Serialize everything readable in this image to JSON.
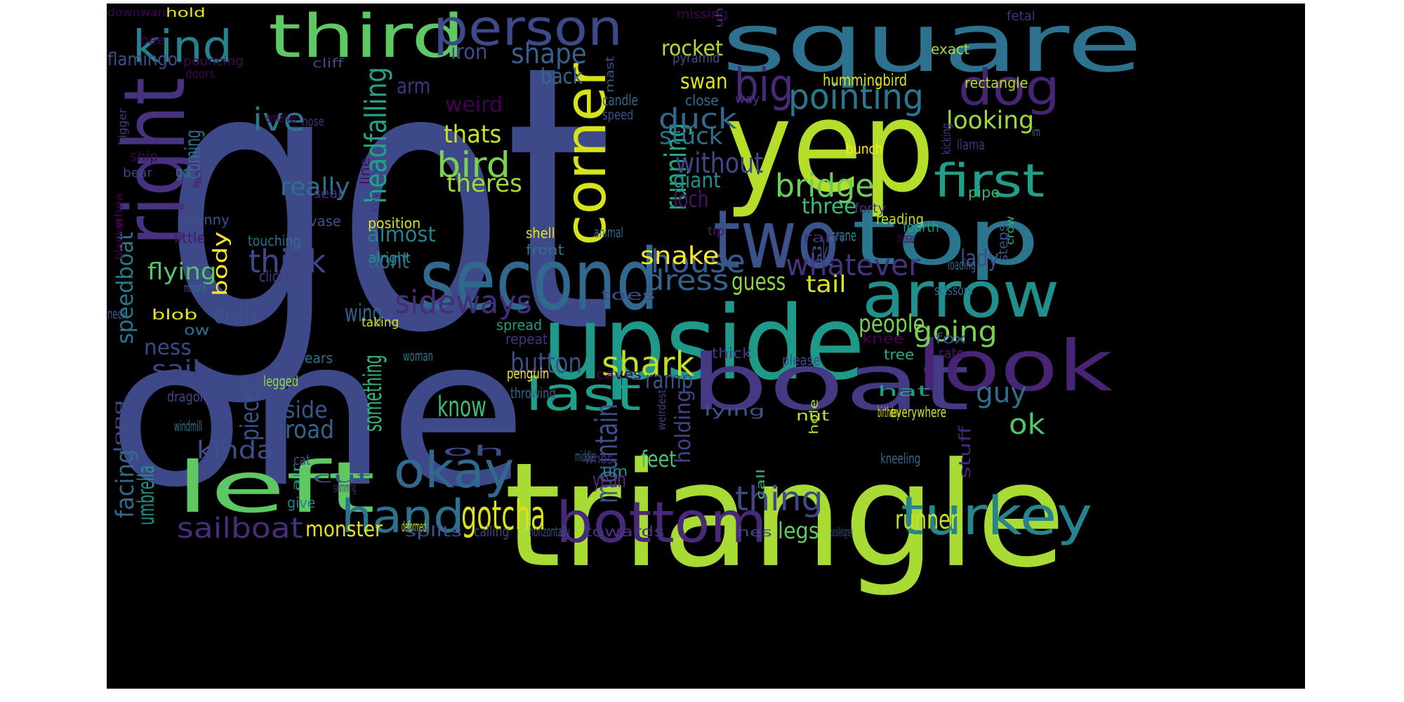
{
  "title": "word cloud",
  "palette": {
    "background": "#000000",
    "page": "#ffffff"
  },
  "words": [
    {
      "text": "got",
      "color": "#3e4989"
    },
    {
      "text": "one",
      "color": "#3e4989"
    },
    {
      "text": "triangle",
      "color": "#a8db34"
    },
    {
      "text": "upside",
      "color": "#1f9a8a"
    },
    {
      "text": "square",
      "color": "#2c728e"
    },
    {
      "text": "yep",
      "color": "#b5de2b"
    },
    {
      "text": "boat",
      "color": "#443983"
    },
    {
      "text": "second",
      "color": "#31688e"
    },
    {
      "text": "two",
      "color": "#3b528b"
    },
    {
      "text": "top",
      "color": "#2a768e"
    },
    {
      "text": "arrow",
      "color": "#21908d"
    },
    {
      "text": "look",
      "color": "#482475"
    },
    {
      "text": "third",
      "color": "#5ec962"
    },
    {
      "text": "person",
      "color": "#3e4989"
    },
    {
      "text": "left",
      "color": "#5ec962"
    },
    {
      "text": "right",
      "color": "#46327e"
    },
    {
      "text": "corner",
      "color": "#d8e219"
    },
    {
      "text": "bottom",
      "color": "#482878"
    },
    {
      "text": "turkey",
      "color": "#25848e"
    },
    {
      "text": "hand",
      "color": "#2c728e"
    },
    {
      "text": "okay",
      "color": "#31688e"
    },
    {
      "text": "last",
      "color": "#1f9e89"
    },
    {
      "text": "dog",
      "color": "#482475"
    },
    {
      "text": "kind",
      "color": "#26828e"
    },
    {
      "text": "first",
      "color": "#1f9e89"
    },
    {
      "text": "big",
      "color": "#482878"
    },
    {
      "text": "pointing",
      "color": "#29798e"
    },
    {
      "text": "gotcha",
      "color": "#dde318"
    },
    {
      "text": "sailboat",
      "color": "#472d7b"
    },
    {
      "text": "sideways",
      "color": "#472c7a"
    },
    {
      "text": "shark",
      "color": "#c2df23"
    },
    {
      "text": "thing",
      "color": "#3f4788"
    },
    {
      "text": "whatever",
      "color": "#46337f"
    },
    {
      "text": "bridge",
      "color": "#6ccd5a"
    },
    {
      "text": "house",
      "color": "#375a8c"
    },
    {
      "text": "going",
      "color": "#75d054"
    },
    {
      "text": "think",
      "color": "#404688"
    },
    {
      "text": "mountain",
      "color": "#3b528b"
    },
    {
      "text": "running",
      "color": "#22a884"
    },
    {
      "text": "headfalling",
      "color": "#20a386"
    },
    {
      "text": "ive",
      "color": "#2b758e"
    },
    {
      "text": "bird",
      "color": "#7ad151"
    },
    {
      "text": "duck",
      "color": "#31688e"
    },
    {
      "text": "shape",
      "color": "#35608d"
    },
    {
      "text": "looking",
      "color": "#9dd93b"
    },
    {
      "text": "without",
      "color": "#3f4889"
    },
    {
      "text": "dress",
      "color": "#33628d"
    },
    {
      "text": "guy",
      "color": "#2d708e"
    },
    {
      "text": "ok",
      "color": "#52c569"
    },
    {
      "text": "runner",
      "color": "#c8e020"
    },
    {
      "text": "pieces",
      "color": "#3b528b"
    },
    {
      "text": "monster",
      "color": "#e5e419"
    },
    {
      "text": "legs",
      "color": "#5ec962"
    },
    {
      "text": "kinda",
      "color": "#3d4e8a"
    },
    {
      "text": "road",
      "color": "#32658e"
    },
    {
      "text": "know",
      "color": "#3fbc73"
    },
    {
      "text": "something",
      "color": "#34b679"
    },
    {
      "text": "button",
      "color": "#3d4d8a"
    },
    {
      "text": "snake",
      "color": "#fde725"
    },
    {
      "text": "guess",
      "color": "#8bd646"
    },
    {
      "text": "tail",
      "color": "#dde318"
    },
    {
      "text": "people",
      "color": "#7ad151"
    },
    {
      "text": "sail",
      "color": "#404588"
    },
    {
      "text": "side",
      "color": "#39568c"
    },
    {
      "text": "facing",
      "color": "#31688e"
    },
    {
      "text": "umbrella",
      "color": "#21918c"
    },
    {
      "text": "feet",
      "color": "#4ac16d"
    },
    {
      "text": "holding",
      "color": "#414487"
    },
    {
      "text": "yeah",
      "color": "#5a2d81"
    },
    {
      "text": "ramp",
      "color": "#3b528b"
    },
    {
      "text": "thats",
      "color": "#cae11f"
    },
    {
      "text": "theres",
      "color": "#a0da39"
    },
    {
      "text": "really",
      "color": "#2d718e"
    },
    {
      "text": "almost",
      "color": "#26828e"
    },
    {
      "text": "dont",
      "color": "#33628d"
    },
    {
      "text": "wing",
      "color": "#32658e"
    },
    {
      "text": "flying",
      "color": "#54c568"
    },
    {
      "text": "crab",
      "color": "#3b528b"
    },
    {
      "text": "coming",
      "color": "#2e6e8e"
    },
    {
      "text": "body",
      "color": "#fde725"
    },
    {
      "text": "speedboat",
      "color": "#2a788e"
    },
    {
      "text": "ness",
      "color": "#3e4989"
    },
    {
      "text": "swan",
      "color": "#e2e418"
    },
    {
      "text": "rocket",
      "color": "#b8de29"
    },
    {
      "text": "iron",
      "color": "#3d4e8a"
    },
    {
      "text": "back",
      "color": "#31688e"
    },
    {
      "text": "arm",
      "color": "#46327e"
    },
    {
      "text": "weird",
      "color": "#440154"
    },
    {
      "text": "stuck",
      "color": "#2c728e"
    },
    {
      "text": "giant",
      "color": "#21918c"
    },
    {
      "text": "loch",
      "color": "#471164"
    },
    {
      "text": "cake",
      "color": "#3e4a89"
    },
    {
      "text": "three",
      "color": "#3fbc73"
    },
    {
      "text": "lady",
      "color": "#3d4e8a"
    },
    {
      "text": "flamingo",
      "color": "#3d4e8a"
    },
    {
      "text": "hummingbird",
      "color": "#dae319"
    },
    {
      "text": "rectangle",
      "color": "#b8de29"
    },
    {
      "text": "exact",
      "color": "#9fda3a"
    },
    {
      "text": "missing",
      "color": "#440154"
    },
    {
      "text": "downward",
      "color": "#440154"
    },
    {
      "text": "hold",
      "color": "#e7e419"
    },
    {
      "text": "bee",
      "color": "#440154"
    },
    {
      "text": "pouncing",
      "color": "#450559"
    },
    {
      "text": "doors",
      "color": "#440154"
    },
    {
      "text": "cliff",
      "color": "#3e4989"
    },
    {
      "text": "pyramid",
      "color": "#3b528b"
    },
    {
      "text": "mast",
      "color": "#39568c"
    },
    {
      "text": "uh",
      "color": "#46337f"
    },
    {
      "text": "fetal",
      "color": "#46327e"
    },
    {
      "text": "ship",
      "color": "#440154"
    },
    {
      "text": "candle",
      "color": "#31688e"
    },
    {
      "text": "speed",
      "color": "#39568c"
    },
    {
      "text": "close",
      "color": "#2d708e"
    },
    {
      "text": "way",
      "color": "#46327e"
    },
    {
      "text": "bigger",
      "color": "#443983"
    },
    {
      "text": "bear",
      "color": "#414487"
    },
    {
      "text": "go",
      "color": "#2a788e"
    },
    {
      "text": "smaller",
      "color": "#440154"
    },
    {
      "text": "nose",
      "color": "#472d7b"
    },
    {
      "text": "kicking",
      "color": "#443983"
    },
    {
      "text": "llama",
      "color": "#46307e"
    },
    {
      "text": "im",
      "color": "#31688e"
    },
    {
      "text": "bunch",
      "color": "#fde725"
    },
    {
      "text": "line",
      "color": "#470d60"
    },
    {
      "text": "key",
      "color": "#46327e"
    },
    {
      "text": "seal",
      "color": "#472d7b"
    },
    {
      "text": "vase",
      "color": "#3b528b"
    },
    {
      "text": "forty",
      "color": "#46327e"
    },
    {
      "text": "pipe",
      "color": "#35b779"
    },
    {
      "text": "reading",
      "color": "#bddf26"
    },
    {
      "text": "fourth",
      "color": "#1fa088"
    },
    {
      "text": "whoa",
      "color": "#440154"
    },
    {
      "text": "blanket",
      "color": "#440154"
    },
    {
      "text": "skinny",
      "color": "#3d4e8a"
    },
    {
      "text": "little",
      "color": "#481769"
    },
    {
      "text": "touching",
      "color": "#2c728e"
    },
    {
      "text": "position",
      "color": "#dde318"
    },
    {
      "text": "shell",
      "color": "#e5e419"
    },
    {
      "text": "tip",
      "color": "#481769"
    },
    {
      "text": "crane",
      "color": "#25848e"
    },
    {
      "text": "ram",
      "color": "#46327e"
    },
    {
      "text": "dinosaur",
      "color": "#440154"
    },
    {
      "text": "steps",
      "color": "#3b528b"
    },
    {
      "text": "crow",
      "color": "#27ad81"
    },
    {
      "text": "animal",
      "color": "#31688e"
    },
    {
      "text": "front",
      "color": "#2c728e"
    },
    {
      "text": "clicked",
      "color": "#433e85"
    },
    {
      "text": "alright",
      "color": "#20928c"
    },
    {
      "text": "missed",
      "color": "#2f6c8e"
    },
    {
      "text": "scissors",
      "color": "#2f6b8e"
    },
    {
      "text": "toes",
      "color": "#3e4a89"
    },
    {
      "text": "loading",
      "color": "#31688e"
    },
    {
      "text": "blob",
      "color": "#e5e419"
    },
    {
      "text": "ow",
      "color": "#2d708e"
    },
    {
      "text": "neck",
      "color": "#39568c"
    },
    {
      "text": "taking",
      "color": "#d0e11c"
    },
    {
      "text": "spread",
      "color": "#1f9e89"
    },
    {
      "text": "repeat",
      "color": "#46327e"
    },
    {
      "text": "thick",
      "color": "#443a83"
    },
    {
      "text": "please",
      "color": "#3e4989"
    },
    {
      "text": "knee",
      "color": "#440154"
    },
    {
      "text": "tree",
      "color": "#27ad81"
    },
    {
      "text": "fox",
      "color": "#3b528b"
    },
    {
      "text": "rate",
      "color": "#481467"
    },
    {
      "text": "ears",
      "color": "#2c728e"
    },
    {
      "text": "woman",
      "color": "#2a788e"
    },
    {
      "text": "penguin",
      "color": "#fde725"
    },
    {
      "text": "caves",
      "color": "#440154"
    },
    {
      "text": "legged",
      "color": "#90d743"
    },
    {
      "text": "dragon",
      "color": "#3e4989"
    },
    {
      "text": "throwing",
      "color": "#31688e"
    },
    {
      "text": "hat",
      "color": "#1fa088"
    },
    {
      "text": "weirdest",
      "color": "#433e85"
    },
    {
      "text": "lying",
      "color": "#39568c"
    },
    {
      "text": "hole",
      "color": "#a5db36"
    },
    {
      "text": "nut",
      "color": "#c2df23"
    },
    {
      "text": "birthday",
      "color": "#d5e21a"
    },
    {
      "text": "everywhere",
      "color": "#d8e219"
    },
    {
      "text": "long",
      "color": "#3e4989"
    },
    {
      "text": "windmill",
      "color": "#2a788e"
    },
    {
      "text": "oh",
      "color": "#3e4a89"
    },
    {
      "text": "cat",
      "color": "#3b528b"
    },
    {
      "text": "air",
      "color": "#1f9e89"
    },
    {
      "text": "swimming",
      "color": "#46327e"
    },
    {
      "text": "cut",
      "color": "#3b528b"
    },
    {
      "text": "give",
      "color": "#26828e"
    },
    {
      "text": "whos",
      "color": "#472a7a"
    },
    {
      "text": "um",
      "color": "#21918c"
    },
    {
      "text": "middle",
      "color": "#31688e"
    },
    {
      "text": "kneeling",
      "color": "#31688e"
    },
    {
      "text": "stuff",
      "color": "#482878"
    },
    {
      "text": "call",
      "color": "#35b779"
    },
    {
      "text": "deformed",
      "color": "#d0e11c"
    },
    {
      "text": "splits",
      "color": "#3b528b"
    },
    {
      "text": "calling",
      "color": "#3e4989"
    },
    {
      "text": "horizontally",
      "color": "#3b528b"
    },
    {
      "text": "towards",
      "color": "#46327e"
    },
    {
      "text": "hes",
      "color": "#3e4989"
    },
    {
      "text": "parallelogram",
      "color": "#3b528b"
    }
  ]
}
